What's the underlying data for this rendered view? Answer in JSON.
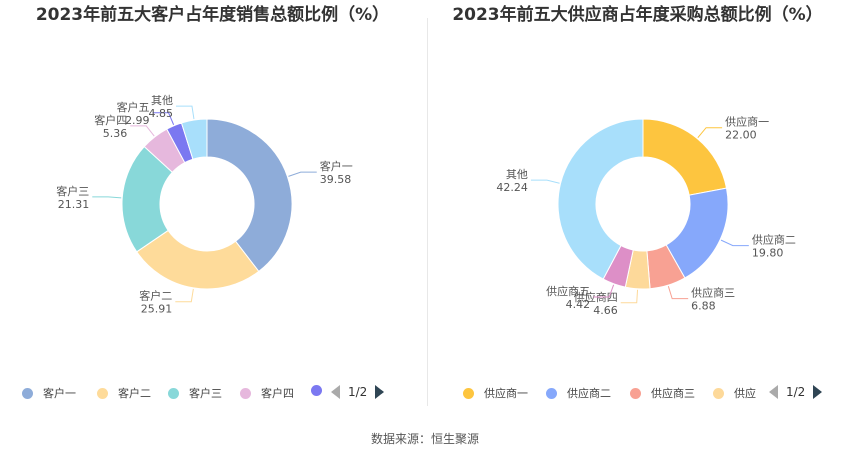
{
  "source_text": "数据来源：恒生聚源",
  "chart_data": [
    {
      "type": "donut",
      "title": "2023年前五大客户占年度销售总额比例（%）",
      "slices": [
        {
          "name": "客户一",
          "value": 39.58,
          "color": "#8eacd9"
        },
        {
          "name": "客户二",
          "value": 25.91,
          "color": "#fedb9a"
        },
        {
          "name": "客户三",
          "value": 21.31,
          "color": "#88d8d9"
        },
        {
          "name": "客户四",
          "value": 5.36,
          "color": "#e6b8dd"
        },
        {
          "name": "客户五",
          "value": 2.99,
          "color": "#7b78f1"
        },
        {
          "name": "其他",
          "value": 4.85,
          "color": "#a8dffb"
        }
      ],
      "legend": {
        "items": [
          "客户一",
          "客户二",
          "客户三",
          "客户四"
        ],
        "page": "1/2",
        "placement": "bottom"
      }
    },
    {
      "type": "donut",
      "title": "2023年前五大供应商占年度采购总额比例（%）",
      "slices": [
        {
          "name": "供应商一",
          "value": 22.0,
          "color": "#fdc53f"
        },
        {
          "name": "供应商二",
          "value": 19.8,
          "color": "#86a8fb"
        },
        {
          "name": "供应商三",
          "value": 6.88,
          "color": "#f8a193"
        },
        {
          "name": "供应商四",
          "value": 4.66,
          "color": "#fdd99a"
        },
        {
          "name": "供应商五",
          "value": 4.42,
          "color": "#dd8fc7"
        },
        {
          "name": "其他",
          "value": 42.24,
          "color": "#a8dffb"
        }
      ],
      "legend": {
        "items": [
          "供应商一",
          "供应商二",
          "供应商三",
          "供应"
        ],
        "page": "1/2",
        "placement": "bottom"
      }
    }
  ]
}
